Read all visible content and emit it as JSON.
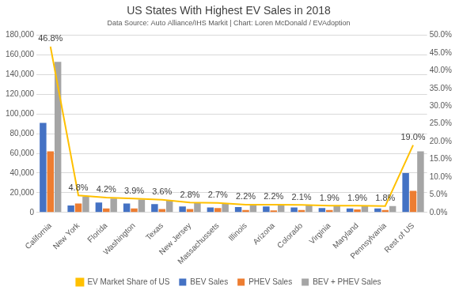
{
  "chart_data": {
    "type": "bar",
    "title": "US States With Highest EV Sales in 2018",
    "subtitle": "Data Source: Auto Alliance/IHS Markit | Chart: Loren McDonald / EVAdoption",
    "categories": [
      "California",
      "New York",
      "Florida",
      "Washington",
      "Texas",
      "New Jersey",
      "Massachussets",
      "Illinois",
      "Arizona",
      "Colorado",
      "Virginia",
      "Maryland",
      "Pennsylvania",
      "Rest of US"
    ],
    "series": [
      {
        "name": "BEV Sales",
        "color": "#4472c4",
        "values": [
          91000,
          7000,
          10000,
          9000,
          8500,
          6000,
          5000,
          5500,
          6000,
          5000,
          4500,
          4000,
          4000,
          40000
        ]
      },
      {
        "name": "PHEV Sales",
        "color": "#ed7d31",
        "values": [
          62000,
          9000,
          4000,
          4000,
          3500,
          3500,
          4500,
          2500,
          2000,
          2500,
          2500,
          3000,
          2500,
          22000
        ]
      },
      {
        "name": "BEV + PHEV Sales",
        "color": "#a5a5a5",
        "values": [
          153000,
          16000,
          14000,
          13000,
          12000,
          9500,
          9500,
          8000,
          8000,
          7500,
          7000,
          7000,
          6500,
          62000
        ]
      },
      {
        "name": "EV Market Share of US",
        "color": "#ffc000",
        "type": "line",
        "axis": "y2",
        "marker": "none",
        "data_labels": true,
        "values": [
          46.8,
          4.8,
          4.2,
          3.9,
          3.6,
          2.8,
          2.7,
          2.2,
          2.2,
          2.1,
          1.9,
          1.9,
          1.8,
          19.0
        ],
        "value_labels": [
          "46.8%",
          "4.8%",
          "4.2%",
          "3.9%",
          "3.6%",
          "2.8%",
          "2.7%",
          "2.2%",
          "2.2%",
          "2.1%",
          "1.9%",
          "1.9%",
          "1.8%",
          "19.0%"
        ]
      }
    ],
    "ylim": [
      0,
      180000
    ],
    "yticks": [
      0,
      {
        "value": 20000,
        "label": "20,000"
      },
      {
        "value": 40000,
        "label": "40,000"
      },
      {
        "value": 60000,
        "label": "60,000"
      },
      {
        "value": 80000,
        "label": "80,000"
      },
      {
        "value": 100000,
        "label": "100,000"
      },
      {
        "value": 120000,
        "label": "120,000"
      },
      {
        "value": 140000,
        "label": "140,000"
      },
      {
        "value": 160000,
        "label": "160,000"
      },
      {
        "value": 180000,
        "label": "180,000"
      }
    ],
    "y2lim": [
      0,
      50
    ],
    "y2ticks": [
      {
        "value": 0,
        "label": "0.0%"
      },
      {
        "value": 5,
        "label": "5.0%"
      },
      {
        "value": 10,
        "label": "10.0%"
      },
      {
        "value": 15,
        "label": "15.0%"
      },
      {
        "value": 20,
        "label": "20.0%"
      },
      {
        "value": 25,
        "label": "25.0%"
      },
      {
        "value": 30,
        "label": "30.0%"
      },
      {
        "value": 35,
        "label": "35.0%"
      },
      {
        "value": 40,
        "label": "40.0%"
      },
      {
        "value": 45,
        "label": "45.0%"
      },
      {
        "value": 50,
        "label": "50.0%"
      }
    ],
    "grid": true,
    "legend": "bottom"
  }
}
